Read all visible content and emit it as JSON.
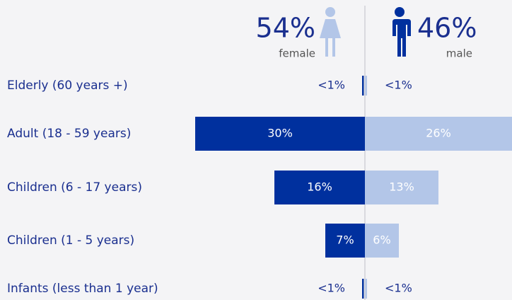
{
  "chart_data": {
    "type": "pyramid",
    "categories": [
      "Elderly (60 years +)",
      "Adult (18 - 59 years)",
      "Children (6 - 17 years)",
      "Children (1 - 5 years)",
      "Infants (less than 1 year)"
    ],
    "series": [
      {
        "name": "female",
        "color": "#00309e",
        "total_label": "54%",
        "values": [
          0.3,
          30,
          16,
          7,
          0.3
        ],
        "value_labels": [
          "<1%",
          "30%",
          "16%",
          "7%",
          "<1%"
        ]
      },
      {
        "name": "male",
        "color": "#b3c6e8",
        "total_label": "46%",
        "values": [
          0.3,
          26,
          13,
          6,
          0.3
        ],
        "value_labels": [
          "<1%",
          "26%",
          "13%",
          "6%",
          "<1%"
        ]
      }
    ]
  }
}
